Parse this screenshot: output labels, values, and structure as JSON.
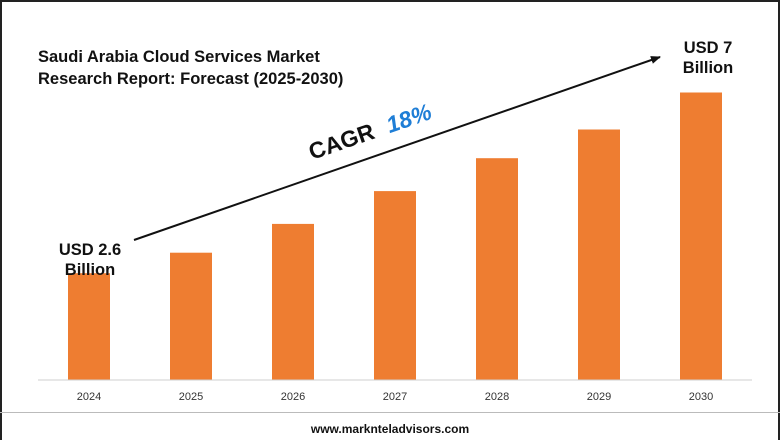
{
  "colors": {
    "bar": "#ee7d31",
    "text": "#111111",
    "cagr_value": "#1f7ed6",
    "axis": "#cfcfcf"
  },
  "title": "Saudi Arabia Cloud Services Market Research Report: Forecast (2025-2030)",
  "start_label": "USD 2.6 Billion",
  "end_label": "USD 7 Billion",
  "cagr": {
    "prefix": "CAGR",
    "value": "18%"
  },
  "footer": "www.marknteladvisors.com",
  "chart_data": {
    "type": "bar",
    "title": "Saudi Arabia Cloud Services Market Research Report: Forecast (2025-2030)",
    "categories": [
      "2024",
      "2025",
      "2026",
      "2027",
      "2028",
      "2029",
      "2030"
    ],
    "values": [
      2.6,
      3.1,
      3.8,
      4.6,
      5.4,
      6.1,
      7.0
    ],
    "unit": "USD Billion",
    "ylim": [
      0,
      7.5
    ],
    "grid": false,
    "annotations": [
      {
        "text": "USD 2.6 Billion",
        "category": "2024"
      },
      {
        "text": "USD 7 Billion",
        "category": "2030"
      },
      {
        "text": "CAGR 18%"
      }
    ]
  }
}
